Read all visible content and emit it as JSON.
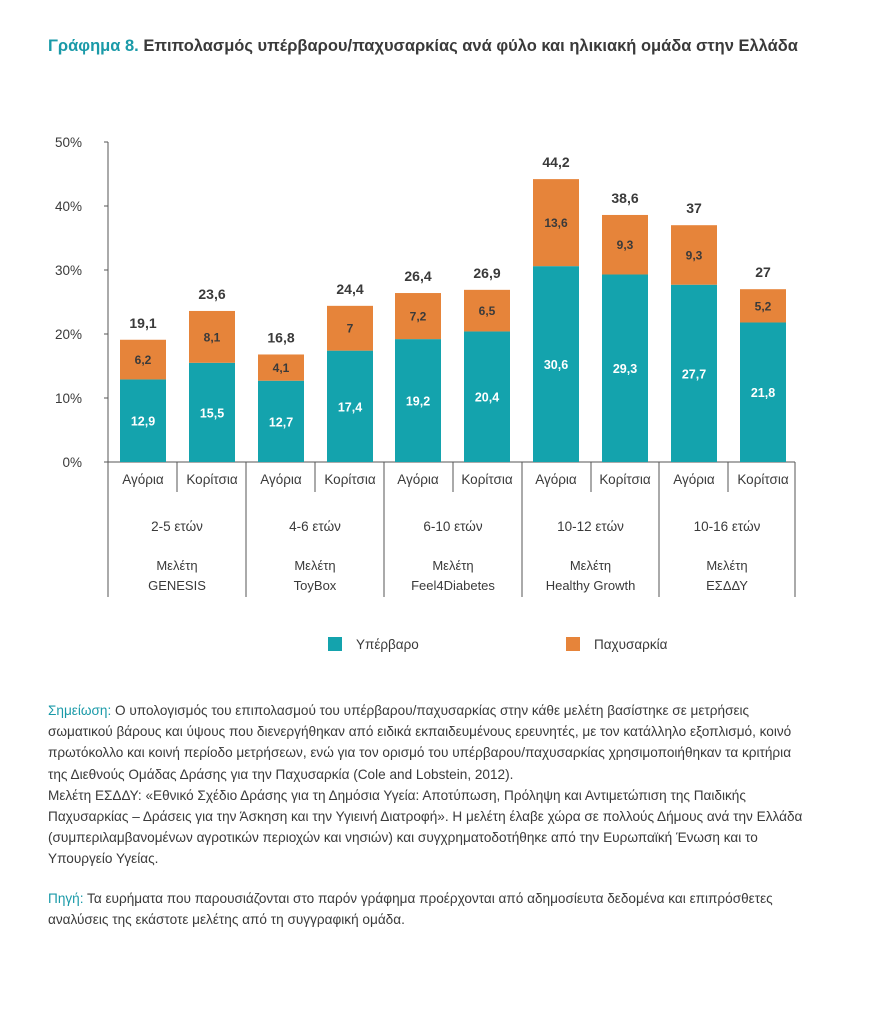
{
  "title": {
    "label": "Γράφημα 8.",
    "text": "Επιπολασμός υπέρβαρου/παχυσαρκίας ανά φύλο και ηλικιακή ομάδα στην Ελλάδα"
  },
  "chart_data": {
    "type": "bar",
    "stacked": true,
    "categories": [
      "Αγόρια",
      "Κορίτσια",
      "Αγόρια",
      "Κορίτσια",
      "Αγόρια",
      "Κορίτσια",
      "Αγόρια",
      "Κορίτσια",
      "Αγόρια",
      "Κορίτσια"
    ],
    "series": [
      {
        "name": "Υπέρβαρο",
        "color": "#14a3ad",
        "values": [
          12.9,
          15.5,
          12.7,
          17.4,
          19.2,
          20.4,
          30.6,
          29.3,
          27.7,
          21.8
        ],
        "labels": [
          "12,9",
          "15,5",
          "12,7",
          "17,4",
          "19,2",
          "20,4",
          "30,6",
          "29,3",
          "27,7",
          "21,8"
        ]
      },
      {
        "name": "Παχυσαρκία",
        "color": "#e6843a",
        "values": [
          6.2,
          8.1,
          4.1,
          7,
          7.2,
          6.5,
          13.6,
          9.3,
          9.3,
          5.2
        ],
        "labels": [
          "6,2",
          "8,1",
          "4,1",
          "7",
          "7,2",
          "6,5",
          "13,6",
          "9,3",
          "9,3",
          "5,2"
        ]
      }
    ],
    "totals": [
      19.1,
      23.6,
      16.8,
      24.4,
      26.4,
      26.9,
      44.2,
      38.6,
      37,
      27
    ],
    "total_labels": [
      "19,1",
      "23,6",
      "16,8",
      "24,4",
      "26,4",
      "26,9",
      "44,2",
      "38,6",
      "37",
      "27"
    ],
    "ylim": [
      0,
      50
    ],
    "yticks": [
      0,
      10,
      20,
      30,
      40,
      50
    ],
    "ytick_labels": [
      "0%",
      "10%",
      "20%",
      "30%",
      "40%",
      "50%"
    ],
    "groups": [
      {
        "age": "2-5 ετών",
        "study_line1": "Μελέτη",
        "study_line2": "GENESIS"
      },
      {
        "age": "4-6 ετών",
        "study_line1": "Μελέτη",
        "study_line2": "ToyBox"
      },
      {
        "age": "6-10 ετών",
        "study_line1": "Μελέτη",
        "study_line2": "Feel4Diabetes"
      },
      {
        "age": "10-12 ετών",
        "study_line1": "Μελέτη",
        "study_line2": "Healthy Growth"
      },
      {
        "age": "10-16 ετών",
        "study_line1": "Μελέτη",
        "study_line2": "ΕΣΔΔΥ"
      }
    ],
    "legend_position": "bottom",
    "grid": false
  },
  "notes": {
    "note_label": "Σημείωση:",
    "note_text": " Ο υπολογισμός του επιπολασμού του υπέρβαρου/παχυσαρκίας στην κάθε μελέτη βασίστηκε σε μετρήσεις σωματικού βάρους και ύψους που διενεργήθηκαν από ειδικά εκπαιδευμένους ερευνητές, με τον κατάλληλο εξοπλισμό, κοινό πρωτόκολλο και κοινή περίοδο μετρήσεων, ενώ για τον ορισμό του υπέρβαρου/παχυσαρκίας χρησιμοποιήθηκαν τα κριτήρια της Διεθνούς Ομάδας Δράσης για την Παχυσαρκία (Cole and Lobstein, 2012).",
    "essdy_text": "Μελέτη ΕΣΔΔΥ: «Εθνικό Σχέδιο Δράσης για τη Δημόσια Υγεία: Αποτύπωση, Πρόληψη και Αντιμετώπιση της Παιδικής Παχυσαρκίας – Δράσεις για την Άσκηση και την Υγιεινή Διατροφή». Η μελέτη έλαβε χώρα σε πολλούς Δήμους ανά την Ελλάδα (συμπεριλαμβανομένων αγροτικών περιοχών και νησιών) και συγχρηματοδοτήθηκε από την Ευρωπαϊκή Ένωση και το Υπουργείο Υγείας.",
    "source_label": "Πηγή:",
    "source_text": " Τα ευρήματα που παρουσιάζονται στο παρόν γράφημα προέρχονται από αδημοσίευτα δεδομένα και επιπρόσθετες αναλύσεις της εκάστοτε μελέτης από τη συγγραφική ομάδα."
  }
}
